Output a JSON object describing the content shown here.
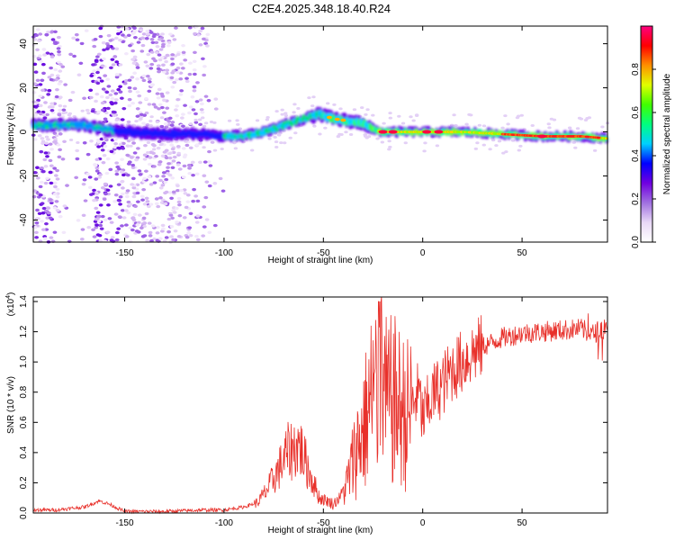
{
  "title": "C2E4.2025.348.18.40.R24",
  "chart_data": [
    {
      "type": "heatmap",
      "title": "C2E4.2025.348.18.40.R24",
      "xlabel": "Height of straight line (km)",
      "ylabel": "Frequency (Hz)",
      "xlim": [
        -196,
        93
      ],
      "ylim": [
        -50,
        48
      ],
      "xticks": [
        -150,
        -100,
        -50,
        0,
        50
      ],
      "yticks": [
        40,
        20,
        0,
        -20,
        -40
      ],
      "colorbar": {
        "label": "Normalized spectral amplitude",
        "range": [
          0,
          1
        ],
        "ticks": [
          "0.0",
          "0.2",
          "0.4",
          "0.6",
          "0.8"
        ],
        "colors": [
          "#ffffff",
          "#e8d8f6",
          "#a070e0",
          "#7000e0",
          "#0000ff",
          "#00d0ff",
          "#00ff80",
          "#40ff00",
          "#e0ff00",
          "#ff9000",
          "#ff0000",
          "#ff0080"
        ]
      },
      "ridge": {
        "x": [
          -196,
          -180,
          -170,
          -160,
          -150,
          -130,
          -110,
          -100,
          -90,
          -80,
          -70,
          -60,
          -52,
          -45,
          -38,
          -30,
          -25,
          -20,
          -10,
          0,
          20,
          40,
          60,
          80,
          93
        ],
        "frequency": [
          3,
          3,
          3,
          1,
          0,
          -1,
          -1,
          -2,
          -2,
          0,
          3,
          6,
          8,
          6,
          5,
          4,
          1,
          0,
          0,
          0,
          0,
          -1,
          -2,
          -2,
          -3
        ]
      }
    },
    {
      "type": "line",
      "xlabel": "Height of straight line (km)",
      "ylabel": "SNR (10 * v/v)",
      "yscale_note": "(x10",
      "yscale_exp": "4",
      "xlim": [
        -196,
        93
      ],
      "ylim": [
        0,
        1.43
      ],
      "xticks": [
        -150,
        -100,
        -50,
        0,
        50
      ],
      "yticks": [
        "1.4",
        "1.2",
        "1.0",
        "0.8",
        "0.6",
        "0.4",
        "0.2",
        "0.0"
      ],
      "series": [
        {
          "name": "SNR",
          "color": "#e8302a",
          "x": [
            -196,
            -185,
            -170,
            -163,
            -158,
            -150,
            -130,
            -110,
            -100,
            -90,
            -83,
            -78,
            -72,
            -68,
            -62,
            -58,
            -52,
            -48,
            -45,
            -42,
            -38,
            -34,
            -30,
            -27,
            -25,
            -23,
            -21,
            -18,
            -15,
            -12,
            -8,
            -5,
            -2,
            0,
            5,
            10,
            15,
            20,
            25,
            30,
            40,
            50,
            60,
            70,
            80,
            85,
            90,
            93
          ],
          "values": [
            0.02,
            0.02,
            0.04,
            0.08,
            0.06,
            0.01,
            0.01,
            0.02,
            0.02,
            0.04,
            0.07,
            0.16,
            0.3,
            0.4,
            0.45,
            0.3,
            0.1,
            0.08,
            0.06,
            0.1,
            0.2,
            0.4,
            0.55,
            0.7,
            0.8,
            0.85,
            0.95,
            0.7,
            0.75,
            0.7,
            0.65,
            0.72,
            0.8,
            0.62,
            0.78,
            0.85,
            0.95,
            1.0,
            1.06,
            1.1,
            1.16,
            1.19,
            1.2,
            1.21,
            1.22,
            1.18,
            1.22,
            1.25
          ]
        }
      ]
    }
  ]
}
